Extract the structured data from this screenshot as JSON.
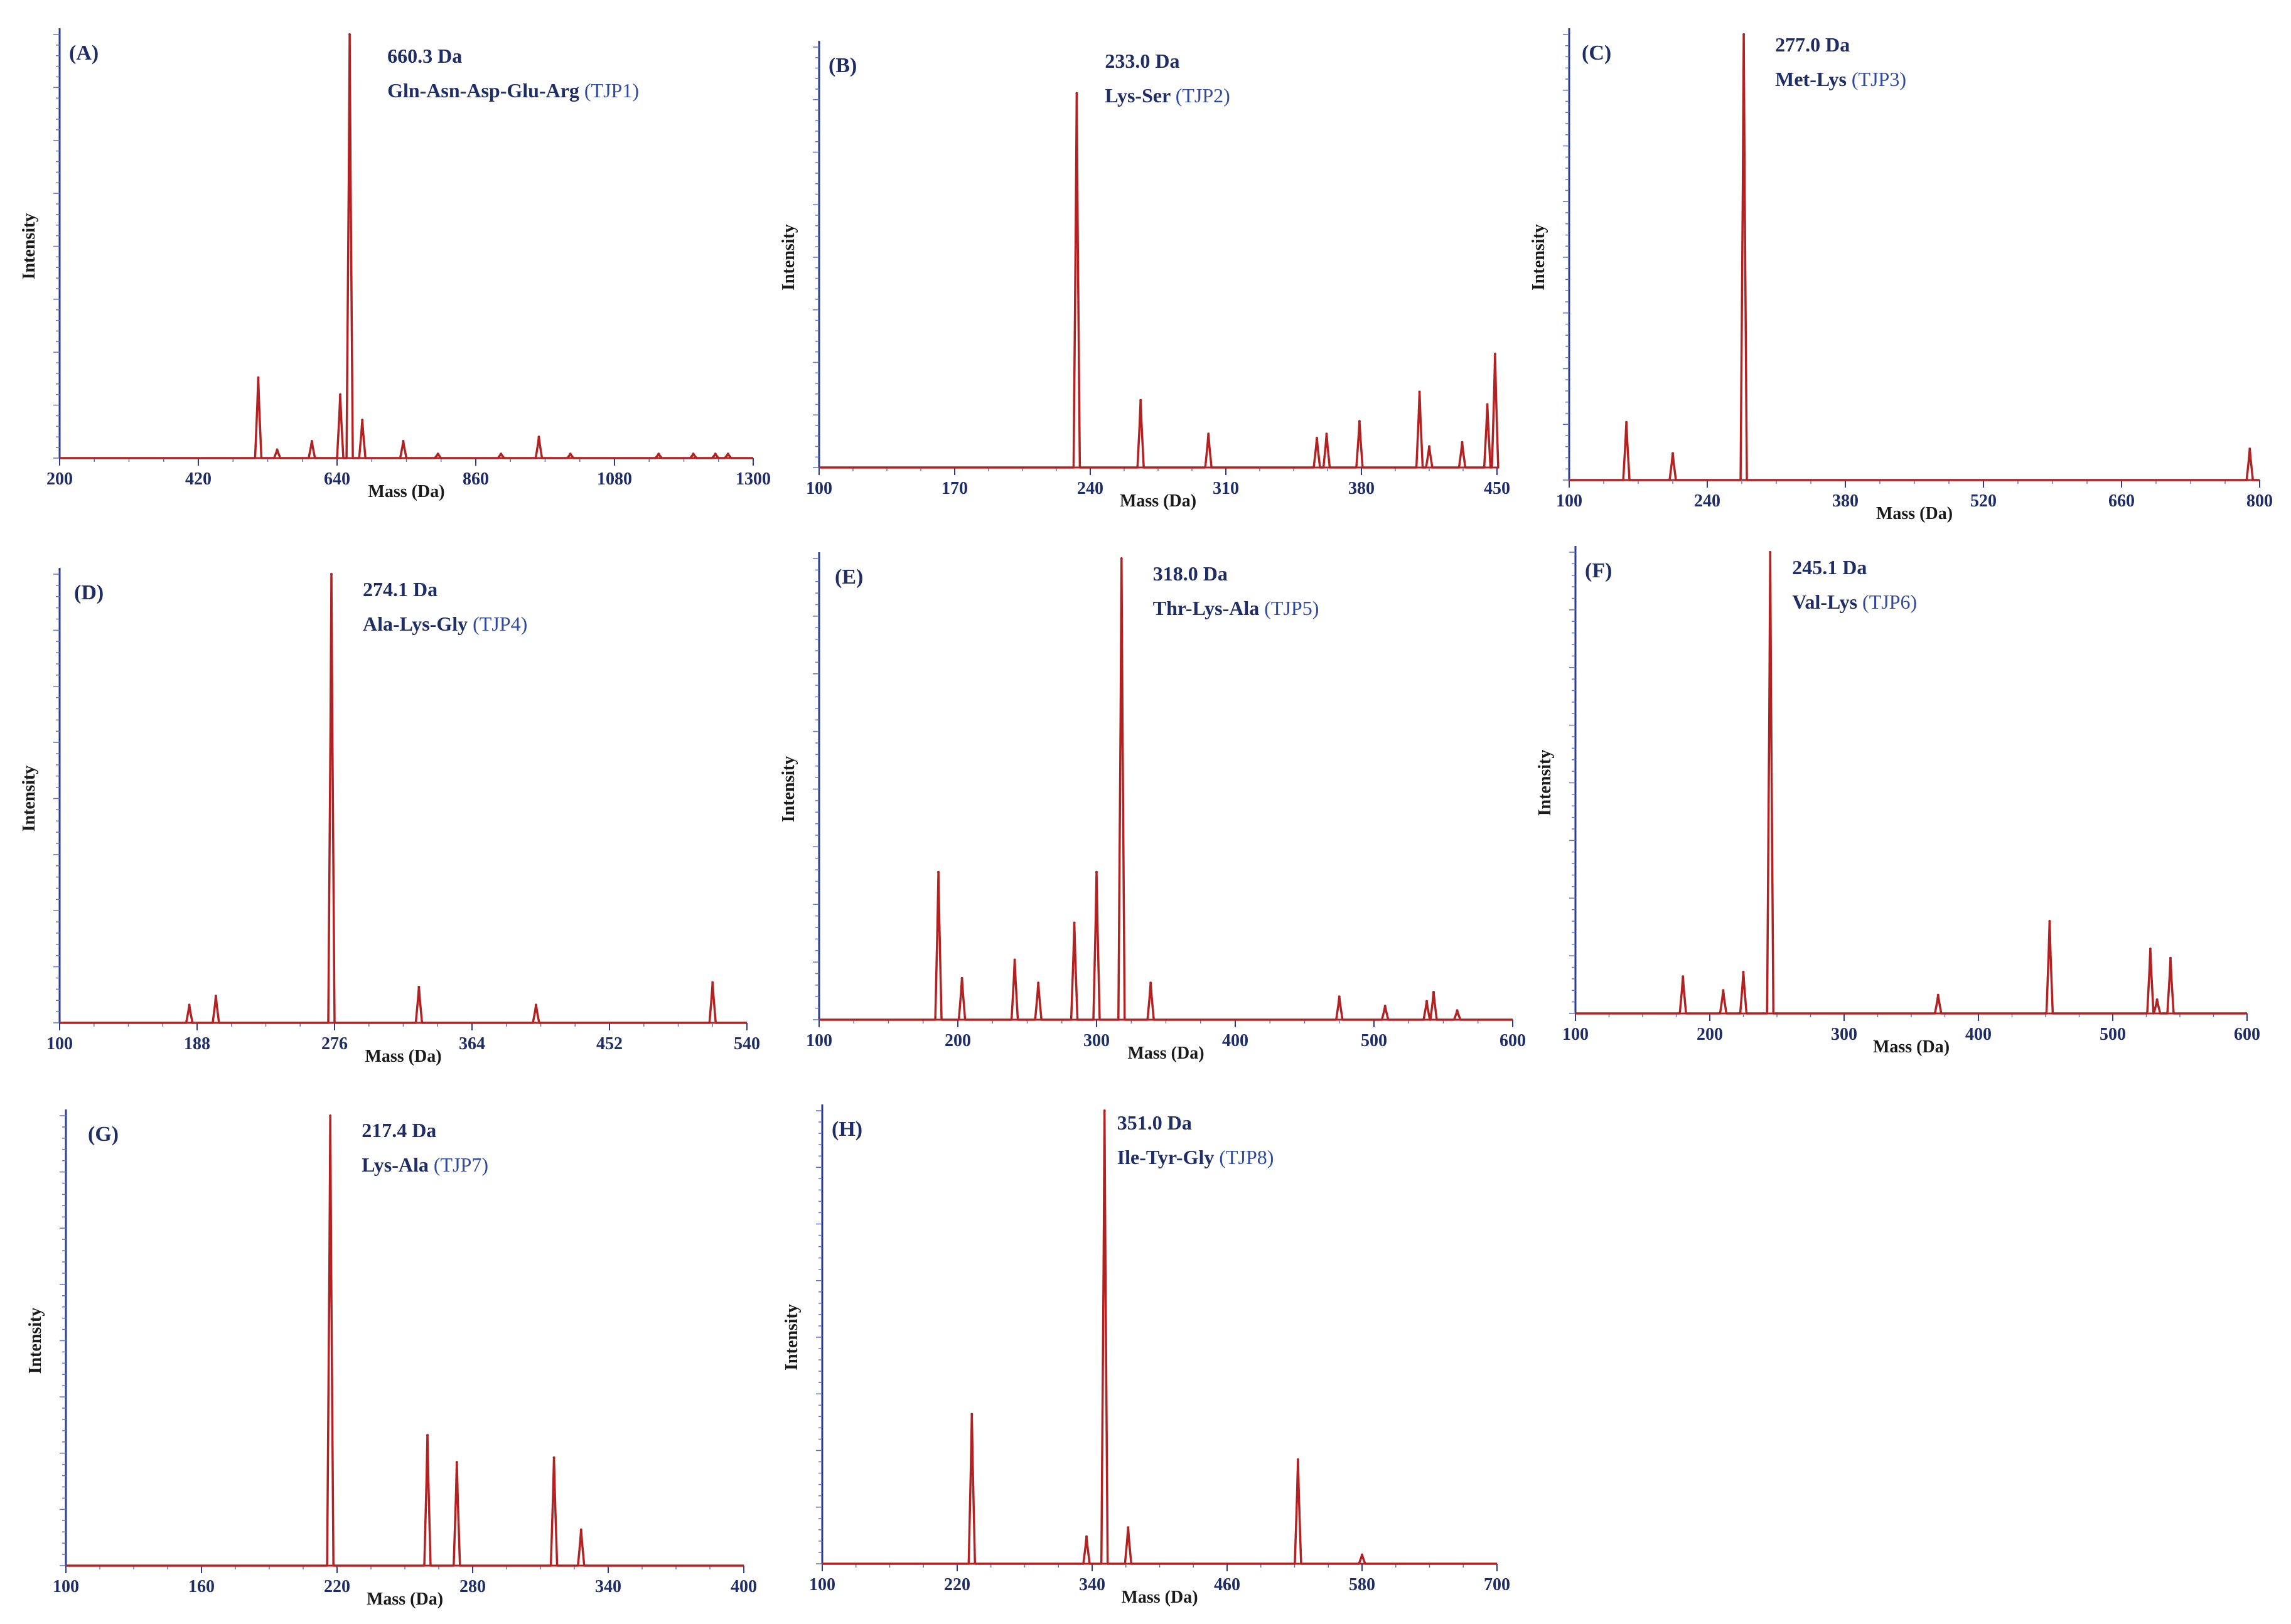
{
  "chart_data": [
    {
      "type": "line",
      "panel": "(A)",
      "peak_mass_label": "660.3 Da",
      "sequence": "Gln-Asn-Asp-Glu-Arg",
      "code": "(TJP1)",
      "xlabel": "Mass (Da)",
      "ylabel": "Intensity",
      "xlim": [
        200,
        1300
      ],
      "xticks": [
        200,
        420,
        640,
        860,
        1080,
        1300
      ],
      "ylim": [
        0,
        100
      ],
      "peaks": [
        [
          515,
          19
        ],
        [
          545,
          2
        ],
        [
          600,
          4
        ],
        [
          645,
          15
        ],
        [
          660,
          100
        ],
        [
          680,
          9
        ],
        [
          745,
          4
        ],
        [
          800,
          1
        ],
        [
          900,
          1
        ],
        [
          960,
          5
        ],
        [
          1010,
          1
        ],
        [
          1150,
          1
        ],
        [
          1205,
          1
        ],
        [
          1240,
          1
        ],
        [
          1260,
          1
        ]
      ]
    },
    {
      "type": "line",
      "panel": "(B)",
      "peak_mass_label": "233.0 Da",
      "sequence": "Lys-Ser",
      "code": "(TJP2)",
      "xlabel": "Mass (Da)",
      "ylabel": "Intensity",
      "xlim": [
        100,
        450
      ],
      "xticks": [
        100,
        170,
        240,
        310,
        380,
        450
      ],
      "ylim": [
        0,
        100
      ],
      "peaks": [
        [
          233,
          89
        ],
        [
          266,
          16
        ],
        [
          301,
          8
        ],
        [
          357,
          7
        ],
        [
          362,
          8
        ],
        [
          379,
          11
        ],
        [
          410,
          18
        ],
        [
          415,
          5
        ],
        [
          432,
          6
        ],
        [
          445,
          15
        ],
        [
          449,
          27
        ]
      ]
    },
    {
      "type": "line",
      "panel": "(C)",
      "peak_mass_label": "277.0 Da",
      "sequence": "Met-Lys",
      "code": "(TJP3)",
      "xlabel": "Mass (Da)",
      "ylabel": "Intensity",
      "xlim": [
        100,
        800
      ],
      "xticks": [
        100,
        240,
        380,
        520,
        660,
        800
      ],
      "ylim": [
        0,
        100
      ],
      "peaks": [
        [
          158,
          13
        ],
        [
          205,
          6
        ],
        [
          277,
          100
        ],
        [
          790,
          7
        ]
      ]
    },
    {
      "type": "line",
      "panel": "(D)",
      "peak_mass_label": "274.1 Da",
      "sequence": "Ala-Lys-Gly",
      "code": "(TJP4)",
      "xlabel": "Mass (Da)",
      "ylabel": "Intensity",
      "xlim": [
        100,
        540
      ],
      "xticks": [
        100,
        188,
        276,
        364,
        452,
        540
      ],
      "ylim": [
        0,
        100
      ],
      "peaks": [
        [
          183,
          4
        ],
        [
          200,
          6
        ],
        [
          274,
          100
        ],
        [
          330,
          8
        ],
        [
          405,
          4
        ],
        [
          518,
          9
        ]
      ]
    },
    {
      "type": "line",
      "panel": "(E)",
      "peak_mass_label": "318.0 Da",
      "sequence": "Thr-Lys-Ala",
      "code": "(TJP5)",
      "xlabel": "Mass (Da)",
      "ylabel": "Intensity",
      "xlim": [
        100,
        600
      ],
      "xticks": [
        100,
        200,
        300,
        400,
        500,
        600
      ],
      "ylim": [
        0,
        100
      ],
      "peaks": [
        [
          186,
          32
        ],
        [
          203,
          9
        ],
        [
          241,
          13
        ],
        [
          258,
          8
        ],
        [
          284,
          21
        ],
        [
          300,
          32
        ],
        [
          318,
          100
        ],
        [
          339,
          8
        ],
        [
          475,
          5
        ],
        [
          508,
          3
        ],
        [
          538,
          4
        ],
        [
          543,
          6
        ],
        [
          560,
          2
        ]
      ]
    },
    {
      "type": "line",
      "panel": "(F)",
      "peak_mass_label": "245.1 Da",
      "sequence": "Val-Lys",
      "code": "(TJP6)",
      "xlabel": "Mass (Da)",
      "ylabel": "Intensity",
      "xlim": [
        100,
        600
      ],
      "xticks": [
        100,
        200,
        300,
        400,
        500,
        600
      ],
      "ylim": [
        0,
        100
      ],
      "peaks": [
        [
          180,
          8
        ],
        [
          210,
          5
        ],
        [
          225,
          9
        ],
        [
          245,
          100
        ],
        [
          370,
          4
        ],
        [
          453,
          20
        ],
        [
          528,
          14
        ],
        [
          533,
          3
        ],
        [
          543,
          12
        ]
      ]
    },
    {
      "type": "line",
      "panel": "(G)",
      "peak_mass_label": "217.4 Da",
      "sequence": "Lys-Ala",
      "code": "(TJP7)",
      "xlabel": "Mass (Da)",
      "ylabel": "Intensity",
      "xlim": [
        100,
        400
      ],
      "xticks": [
        100,
        160,
        220,
        280,
        340,
        400
      ],
      "ylim": [
        0,
        100
      ],
      "peaks": [
        [
          217,
          100
        ],
        [
          260,
          29
        ],
        [
          273,
          23
        ],
        [
          316,
          24
        ],
        [
          328,
          8
        ]
      ]
    },
    {
      "type": "line",
      "panel": "(H)",
      "peak_mass_label": "351.0 Da",
      "sequence": "Ile-Tyr-Gly",
      "code": "(TJP8)",
      "xlabel": "Mass (Da)",
      "ylabel": "Intensity",
      "xlim": [
        100,
        700
      ],
      "xticks": [
        100,
        220,
        340,
        460,
        580,
        700
      ],
      "ylim": [
        0,
        100
      ],
      "peaks": [
        [
          233,
          33
        ],
        [
          335,
          6
        ],
        [
          351,
          100
        ],
        [
          372,
          8
        ],
        [
          523,
          23
        ],
        [
          580,
          2
        ]
      ]
    }
  ]
}
